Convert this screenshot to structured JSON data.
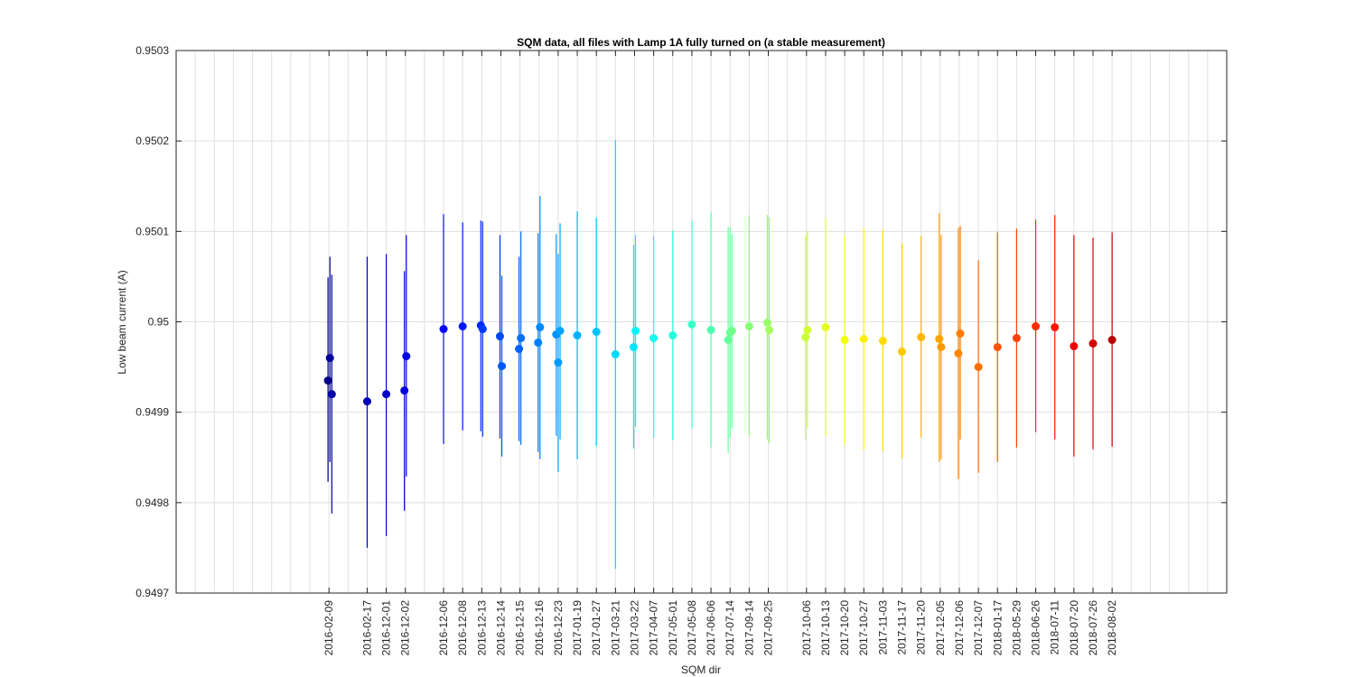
{
  "chart_data": {
    "type": "scatter",
    "title": "SQM data, all files with Lamp 1A fully turned on (a stable measurement)",
    "xlabel": "SQM dir",
    "ylabel": "Low beam current (A)",
    "ylim": [
      0.9497,
      0.9503
    ],
    "y_ticks": [
      "0.9497",
      "0.9498",
      "0.9499",
      "0.95",
      "0.9501",
      "0.9502",
      "0.9503"
    ],
    "grid": true,
    "error_bars": true,
    "colormap": "jet",
    "x_tick_labels": [
      "2016-02-09",
      "2016-02-17",
      "2016-12-01",
      "2016-12-02",
      "2016-12-06",
      "2016-12-08",
      "2016-12-13",
      "2016-12-14",
      "2016-12-15",
      "2016-12-16",
      "2016-12-23",
      "2017-01-19",
      "2017-01-27",
      "2017-03-21",
      "2017-03-22",
      "2017-04-07",
      "2017-05-01",
      "2017-05-08",
      "2017-06-06",
      "2017-07-14",
      "2017-09-14",
      "2017-09-25",
      "2017-10-06",
      "2017-10-13",
      "2017-10-20",
      "2017-10-27",
      "2017-11-03",
      "2017-11-17",
      "2017-11-20",
      "2017-12-05",
      "2017-12-06",
      "2017-12-07",
      "2018-01-17",
      "2018-05-29",
      "2018-06-26",
      "2018-07-11",
      "2018-07-20",
      "2018-07-26",
      "2018-08-02"
    ],
    "x_tick_positions": [
      2,
      4,
      5,
      6,
      8,
      9,
      10,
      11,
      12,
      13,
      14,
      15,
      16,
      17,
      18,
      19,
      20,
      21,
      22,
      23,
      24,
      25,
      27,
      28,
      29,
      30,
      31,
      32,
      33,
      34,
      35,
      36,
      37,
      38,
      39,
      40,
      41,
      42,
      43
    ],
    "xlim": [
      -6,
      49
    ],
    "x_gridlines": [
      -5,
      -4,
      -3,
      -2,
      -1,
      0,
      1,
      2,
      3,
      4,
      5,
      6,
      7,
      8,
      9,
      10,
      11,
      12,
      13,
      14,
      15,
      16,
      17,
      18,
      19,
      20,
      21,
      22,
      23,
      24,
      25,
      26,
      27,
      28,
      29,
      30,
      31,
      32,
      33,
      34,
      35,
      36,
      37,
      38,
      39,
      40,
      41,
      42,
      43,
      44,
      45,
      46,
      47,
      48
    ],
    "points": [
      {
        "x": 1.95,
        "y": 0.949935,
        "low": 0.949823,
        "high": 0.950049,
        "color": "#000080"
      },
      {
        "x": 2.05,
        "y": 0.94996,
        "low": 0.949845,
        "high": 0.950072,
        "color": "#00009a"
      },
      {
        "x": 2.15,
        "y": 0.94992,
        "low": 0.949788,
        "high": 0.950052,
        "color": "#0000a8"
      },
      {
        "x": 4.0,
        "y": 0.949912,
        "low": 0.94975,
        "high": 0.950072,
        "color": "#0000b8"
      },
      {
        "x": 5.0,
        "y": 0.94992,
        "low": 0.949763,
        "high": 0.950075,
        "color": "#0000c8"
      },
      {
        "x": 5.95,
        "y": 0.949924,
        "low": 0.949791,
        "high": 0.950056,
        "color": "#0000d8"
      },
      {
        "x": 6.05,
        "y": 0.949962,
        "low": 0.949829,
        "high": 0.950096,
        "color": "#0000e6"
      },
      {
        "x": 8.0,
        "y": 0.949992,
        "low": 0.949865,
        "high": 0.950119,
        "color": "#0008ff"
      },
      {
        "x": 9.0,
        "y": 0.949995,
        "low": 0.94988,
        "high": 0.95011,
        "color": "#0018ff"
      },
      {
        "x": 9.95,
        "y": 0.949996,
        "low": 0.949879,
        "high": 0.950112,
        "color": "#0028ff"
      },
      {
        "x": 10.05,
        "y": 0.949992,
        "low": 0.949873,
        "high": 0.950111,
        "color": "#0038ff"
      },
      {
        "x": 10.95,
        "y": 0.949984,
        "low": 0.949871,
        "high": 0.950096,
        "color": "#0048ff"
      },
      {
        "x": 11.05,
        "y": 0.949951,
        "low": 0.949851,
        "high": 0.950051,
        "color": "#0058ff"
      },
      {
        "x": 11.95,
        "y": 0.94997,
        "low": 0.949868,
        "high": 0.950072,
        "color": "#0060ff"
      },
      {
        "x": 12.05,
        "y": 0.949982,
        "low": 0.949864,
        "high": 0.9501,
        "color": "#0070ff"
      },
      {
        "x": 12.95,
        "y": 0.949977,
        "low": 0.949856,
        "high": 0.950098,
        "color": "#0080ff"
      },
      {
        "x": 13.05,
        "y": 0.949994,
        "low": 0.949848,
        "high": 0.950139,
        "color": "#0088ff"
      },
      {
        "x": 13.9,
        "y": 0.949986,
        "low": 0.949874,
        "high": 0.950097,
        "color": "#0090ff"
      },
      {
        "x": 14.0,
        "y": 0.949955,
        "low": 0.949834,
        "high": 0.950075,
        "color": "#009cff"
      },
      {
        "x": 14.1,
        "y": 0.94999,
        "low": 0.94987,
        "high": 0.950109,
        "color": "#00a4ff"
      },
      {
        "x": 15.0,
        "y": 0.949985,
        "low": 0.949848,
        "high": 0.950122,
        "color": "#00b0ff"
      },
      {
        "x": 16.0,
        "y": 0.949989,
        "low": 0.949863,
        "high": 0.950115,
        "color": "#00c4ff"
      },
      {
        "x": 17.0,
        "y": 0.949964,
        "low": 0.949727,
        "high": 0.950201,
        "color": "#00d8ff"
      },
      {
        "x": 17.95,
        "y": 0.949972,
        "low": 0.94986,
        "high": 0.950085,
        "color": "#00e8ff"
      },
      {
        "x": 18.05,
        "y": 0.94999,
        "low": 0.949884,
        "high": 0.950096,
        "color": "#00f4ff"
      },
      {
        "x": 19.0,
        "y": 0.949982,
        "low": 0.949871,
        "high": 0.950095,
        "color": "#10fff0"
      },
      {
        "x": 20.0,
        "y": 0.949985,
        "low": 0.949869,
        "high": 0.950101,
        "color": "#24ffdc"
      },
      {
        "x": 21.0,
        "y": 0.949997,
        "low": 0.949882,
        "high": 0.950112,
        "color": "#38ffc8"
      },
      {
        "x": 22.0,
        "y": 0.949991,
        "low": 0.949861,
        "high": 0.950121,
        "color": "#50ffb0"
      },
      {
        "x": 22.9,
        "y": 0.94998,
        "low": 0.949855,
        "high": 0.950105,
        "color": "#64ff9c"
      },
      {
        "x": 23.0,
        "y": 0.949988,
        "low": 0.949872,
        "high": 0.950104,
        "color": "#6cff94"
      },
      {
        "x": 23.1,
        "y": 0.94999,
        "low": 0.949883,
        "high": 0.950097,
        "color": "#74ff8c"
      },
      {
        "x": 24.0,
        "y": 0.949995,
        "low": 0.949874,
        "high": 0.950117,
        "color": "#88ff78"
      },
      {
        "x": 24.95,
        "y": 0.949999,
        "low": 0.94987,
        "high": 0.950118,
        "color": "#98ff68"
      },
      {
        "x": 25.05,
        "y": 0.949991,
        "low": 0.949866,
        "high": 0.950116,
        "color": "#a4ff5c"
      },
      {
        "x": 26.95,
        "y": 0.949983,
        "low": 0.94987,
        "high": 0.950095,
        "color": "#c8ff38"
      },
      {
        "x": 27.05,
        "y": 0.949991,
        "low": 0.949883,
        "high": 0.950101,
        "color": "#d4ff2c"
      },
      {
        "x": 28.0,
        "y": 0.949994,
        "low": 0.949874,
        "high": 0.950114,
        "color": "#e4ff1c"
      },
      {
        "x": 29.0,
        "y": 0.94998,
        "low": 0.949864,
        "high": 0.950096,
        "color": "#f4ff0c"
      },
      {
        "x": 30.0,
        "y": 0.949981,
        "low": 0.949858,
        "high": 0.950104,
        "color": "#ffef00"
      },
      {
        "x": 31.0,
        "y": 0.949979,
        "low": 0.949857,
        "high": 0.950102,
        "color": "#ffdc00"
      },
      {
        "x": 32.0,
        "y": 0.949967,
        "low": 0.949849,
        "high": 0.950087,
        "color": "#ffc800"
      },
      {
        "x": 33.0,
        "y": 0.949983,
        "low": 0.949872,
        "high": 0.950095,
        "color": "#ffb400"
      },
      {
        "x": 33.95,
        "y": 0.949981,
        "low": 0.949845,
        "high": 0.95012,
        "color": "#ffa400"
      },
      {
        "x": 34.05,
        "y": 0.949972,
        "low": 0.949848,
        "high": 0.950096,
        "color": "#ff9800"
      },
      {
        "x": 34.95,
        "y": 0.949965,
        "low": 0.949826,
        "high": 0.950104,
        "color": "#ff8800"
      },
      {
        "x": 35.05,
        "y": 0.949987,
        "low": 0.94987,
        "high": 0.950106,
        "color": "#ff7c00"
      },
      {
        "x": 36.0,
        "y": 0.94995,
        "low": 0.949833,
        "high": 0.950068,
        "color": "#ff6c00"
      },
      {
        "x": 37.0,
        "y": 0.949972,
        "low": 0.949845,
        "high": 0.950099,
        "color": "#ff5400"
      },
      {
        "x": 38.0,
        "y": 0.949982,
        "low": 0.949861,
        "high": 0.950103,
        "color": "#ff4000"
      },
      {
        "x": 39.0,
        "y": 0.949995,
        "low": 0.949878,
        "high": 0.950113,
        "color": "#ff2c00"
      },
      {
        "x": 40.0,
        "y": 0.949994,
        "low": 0.94987,
        "high": 0.950118,
        "color": "#ff1800"
      },
      {
        "x": 41.0,
        "y": 0.949973,
        "low": 0.949851,
        "high": 0.950096,
        "color": "#f00000"
      },
      {
        "x": 42.0,
        "y": 0.949976,
        "low": 0.949859,
        "high": 0.950093,
        "color": "#d80000"
      },
      {
        "x": 43.0,
        "y": 0.94998,
        "low": 0.949862,
        "high": 0.950099,
        "color": "#b80000"
      }
    ]
  }
}
